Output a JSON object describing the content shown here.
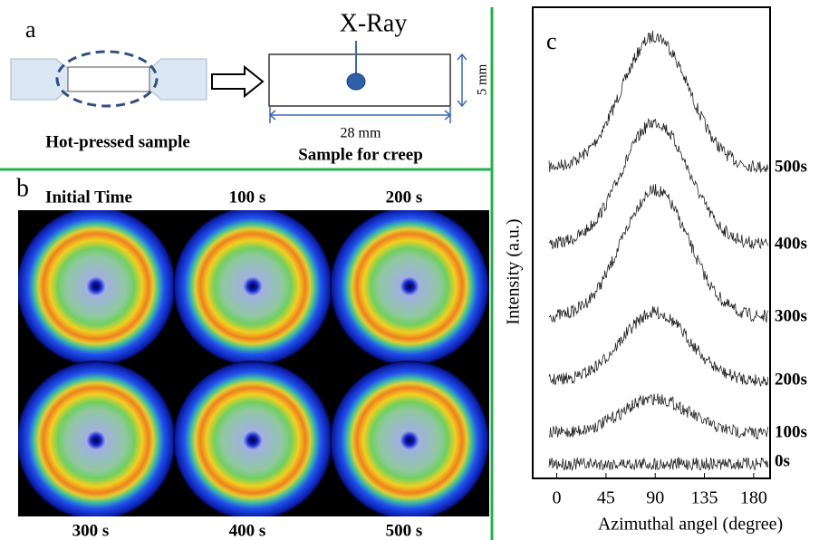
{
  "panel_a": {
    "letter": "a",
    "beam_label": "X-Ray",
    "height_label": "5 mm",
    "width_label": "28 mm",
    "left_caption": "Hot-pressed sample",
    "right_caption": "Sample for creep"
  },
  "panel_b": {
    "letter": "b",
    "frames": [
      "Initial Time",
      "100 s",
      "200 s",
      "300 s",
      "400 s",
      "500 s"
    ]
  },
  "panel_c": {
    "letter": "c",
    "x_label": "Azimuthal angel (degree)",
    "y_label": "Intensity  (a.u.)",
    "xlim": [
      -22,
      195
    ],
    "xticks": [
      0,
      45,
      90,
      135,
      180
    ],
    "curves": [
      "500s",
      "400s",
      "300s",
      "200s",
      "100s",
      "0s"
    ]
  }
}
